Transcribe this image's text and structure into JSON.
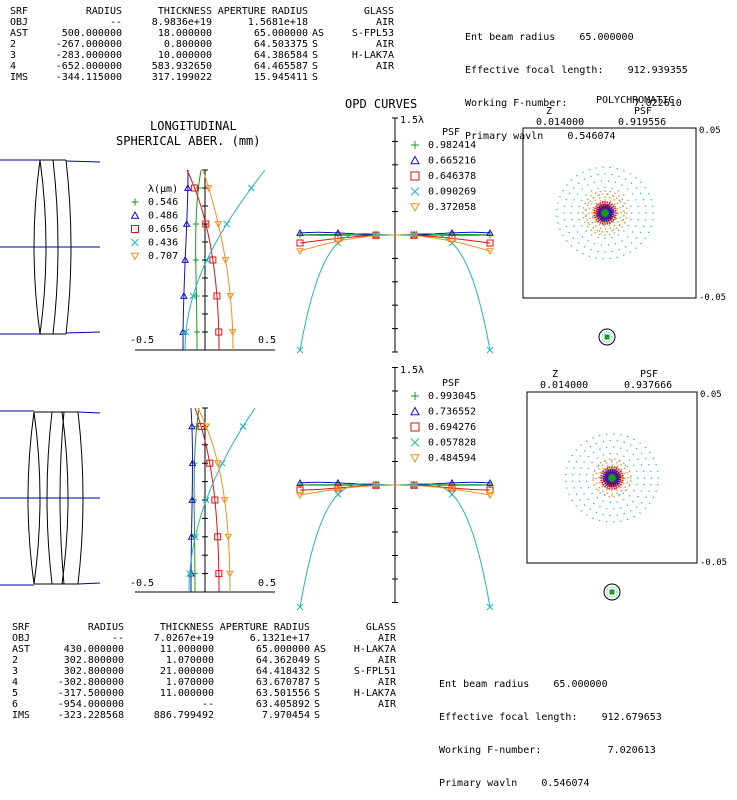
{
  "top": {
    "prescription": {
      "headers": [
        "SRF",
        "RADIUS",
        "THICKNESS",
        "APERTURE RADIUS",
        "GLASS"
      ],
      "rows": [
        {
          "srf": "OBJ",
          "radius": "--",
          "thickness": "8.9836e+19",
          "aperture": "1.5681e+18",
          "flag": "",
          "glass": "AIR"
        },
        {
          "srf": "AST",
          "radius": "500.000000",
          "thickness": "18.000000",
          "aperture": "65.000000",
          "flag": "AS",
          "glass": "S-FPL53"
        },
        {
          "srf": "2",
          "radius": "-267.000000",
          "thickness": "0.800000",
          "aperture": "64.503375",
          "flag": "S",
          "glass": "AIR"
        },
        {
          "srf": "3",
          "radius": "-283.000000",
          "thickness": "10.000000",
          "aperture": "64.386584",
          "flag": "S",
          "glass": "H-LAK7A"
        },
        {
          "srf": "4",
          "radius": "-652.000000",
          "thickness": "583.932650",
          "aperture": "64.465587",
          "flag": "S",
          "glass": "AIR"
        },
        {
          "srf": "IMS",
          "radius": "-344.115000",
          "thickness": "317.199022",
          "aperture": "15.945411",
          "flag": "S",
          "glass": ""
        }
      ]
    },
    "info": {
      "ent_beam_label": "Ent beam radius",
      "ent_beam": "65.000000",
      "efl_label": "Effective focal length:",
      "efl": "912.939355",
      "fnum_label": "Working F-number:",
      "fnum": "7.022610",
      "wavln_label": "Primary wavln",
      "wavln": "0.546074"
    },
    "lsa": {
      "title_line1": "LONGITUDINAL",
      "title_line2": "SPHERICAL ABER. (mm)",
      "legend_title": "λ(μm)",
      "xmin_label": "-0.5",
      "xmax_label": "0.5",
      "wavelengths": [
        "0.546",
        "0.486",
        "0.656",
        "0.436",
        "0.707"
      ]
    },
    "opd": {
      "title": "OPD CURVES",
      "scale_label": "1.5λ",
      "psf_label": "PSF",
      "psf_values": [
        "0.982414",
        "0.665216",
        "0.646378",
        "0.090269",
        "0.372058"
      ]
    },
    "spot": {
      "header_title": "POLYCHROMATIC",
      "z_label": "Z",
      "z_value": "0.014000",
      "psf_label": "PSF",
      "psf_value": "0.919556",
      "scale_top": "0.05",
      "scale_bottom": "-0.05"
    }
  },
  "bottom": {
    "prescription": {
      "headers": [
        "SRF",
        "RADIUS",
        "THICKNESS",
        "APERTURE RADIUS",
        "GLASS"
      ],
      "rows": [
        {
          "srf": "OBJ",
          "radius": "--",
          "thickness": "7.0267e+19",
          "aperture": "6.1321e+17",
          "flag": "",
          "glass": "AIR"
        },
        {
          "srf": "AST",
          "radius": "430.000000",
          "thickness": "11.000000",
          "aperture": "65.000000",
          "flag": "AS",
          "glass": "H-LAK7A"
        },
        {
          "srf": "2",
          "radius": "302.800000",
          "thickness": "1.070000",
          "aperture": "64.362049",
          "flag": "S",
          "glass": "AIR"
        },
        {
          "srf": "3",
          "radius": "302.800000",
          "thickness": "21.000000",
          "aperture": "64.418432",
          "flag": "S",
          "glass": "S-FPL51"
        },
        {
          "srf": "4",
          "radius": "-302.800000",
          "thickness": "1.070000",
          "aperture": "63.670787",
          "flag": "S",
          "glass": "AIR"
        },
        {
          "srf": "5",
          "radius": "-317.500000",
          "thickness": "11.000000",
          "aperture": "63.501556",
          "flag": "S",
          "glass": "H-LAK7A"
        },
        {
          "srf": "6",
          "radius": "-954.000000",
          "thickness": "--",
          "aperture": "63.405892",
          "flag": "S",
          "glass": "AIR"
        },
        {
          "srf": "IMS",
          "radius": "-323.228568",
          "thickness": "886.799492",
          "aperture": "7.970454",
          "flag": "S",
          "glass": ""
        }
      ]
    },
    "info": {
      "ent_beam_label": "Ent beam radius",
      "ent_beam": "65.000000",
      "efl_label": "Effective focal length:",
      "efl": "912.679653",
      "fnum_label": "Working F-number:",
      "fnum": "7.020613",
      "wavln_label": "Primary wavln",
      "wavln": "0.546074"
    },
    "lsa": {
      "xmin_label": "-0.5",
      "xmax_label": "0.5"
    },
    "opd": {
      "scale_label": "1.5λ",
      "psf_label": "PSF",
      "psf_values": [
        "0.993045",
        "0.736552",
        "0.694276",
        "0.057828",
        "0.484594"
      ]
    },
    "spot": {
      "z_label": "Z",
      "z_value": "0.014000",
      "psf_label": "PSF",
      "psf_value": "0.937666",
      "scale_top": "0.05",
      "scale_bottom": "-0.05"
    }
  },
  "colors": {
    "wl1": "#1a9a1a",
    "wl2": "#1010c8",
    "wl3": "#e01010",
    "wl4": "#20b8b8",
    "wl5": "#f09020",
    "lens": "#000000",
    "axis": "#0000a0"
  },
  "icons": {
    "markers": [
      "plus-marker",
      "triangle-marker",
      "square-marker",
      "x-marker",
      "down-triangle-marker"
    ]
  }
}
